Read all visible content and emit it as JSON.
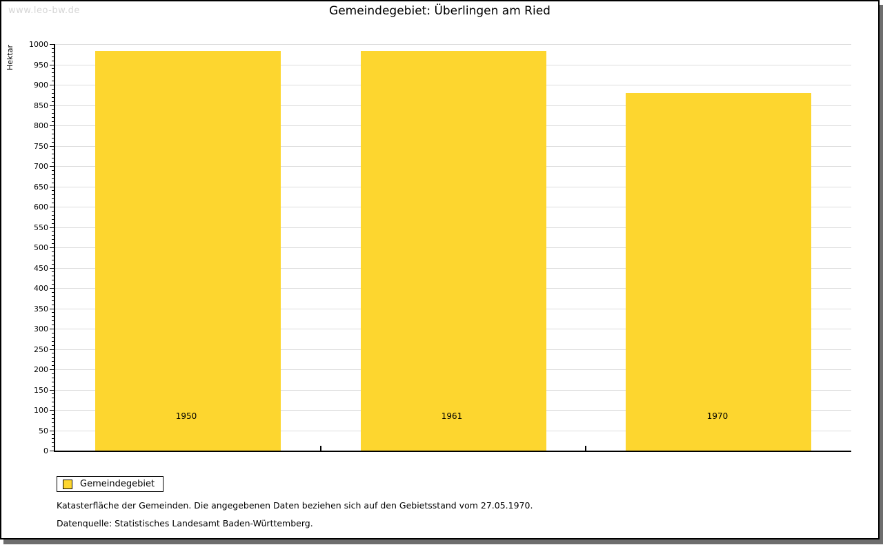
{
  "watermark": "www.leo-bw.de",
  "title": "Gemeindegebiet: Überlingen am Ried",
  "chart_data": {
    "type": "bar",
    "categories": [
      "1950",
      "1961",
      "1970"
    ],
    "series": [
      {
        "name": "Gemeindegebiet",
        "values": [
          983,
          983,
          879
        ]
      }
    ],
    "title": "Gemeindegebiet: Überlingen am Ried",
    "xlabel": "",
    "ylabel": "Hektar",
    "ylim": [
      0,
      1000
    ],
    "y_tick_step": 50,
    "y_minor_tick_step": 10,
    "grid": true,
    "legend_position": "bottom-left",
    "bar_color": "#fdd62f",
    "gridline_color": "#dcdcdc"
  },
  "legend": {
    "items": [
      {
        "label": "Gemeindegebiet",
        "color": "#fdd62f"
      }
    ]
  },
  "footnotes": [
    "Katasterfläche der Gemeinden. Die angegebenen Daten beziehen sich auf den Gebietsstand vom 27.05.1970.",
    "Datenquelle: Statistisches Landesamt Baden-Württemberg."
  ]
}
